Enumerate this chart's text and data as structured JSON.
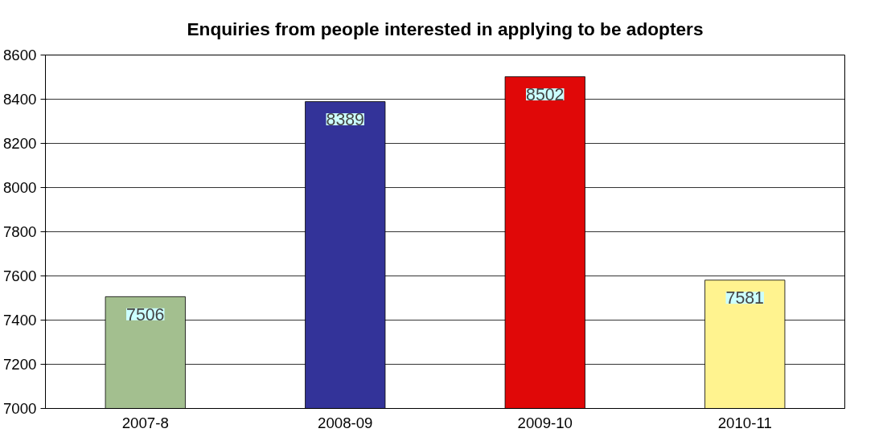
{
  "chart_data": {
    "type": "bar",
    "title": "Enquiries from people interested in applying to be adopters",
    "categories": [
      "2007-8",
      "2008-09",
      "2009-10",
      "2010-11"
    ],
    "values": [
      7506,
      8389,
      8502,
      7581
    ],
    "colors": [
      "#a3bf8f",
      "#333399",
      "#e00808",
      "#fff38f"
    ],
    "ylim": [
      7000,
      8600
    ],
    "yticks": [
      7000,
      7200,
      7400,
      7600,
      7800,
      8000,
      8200,
      8400,
      8600
    ],
    "grid": "y",
    "data_labels": true
  }
}
